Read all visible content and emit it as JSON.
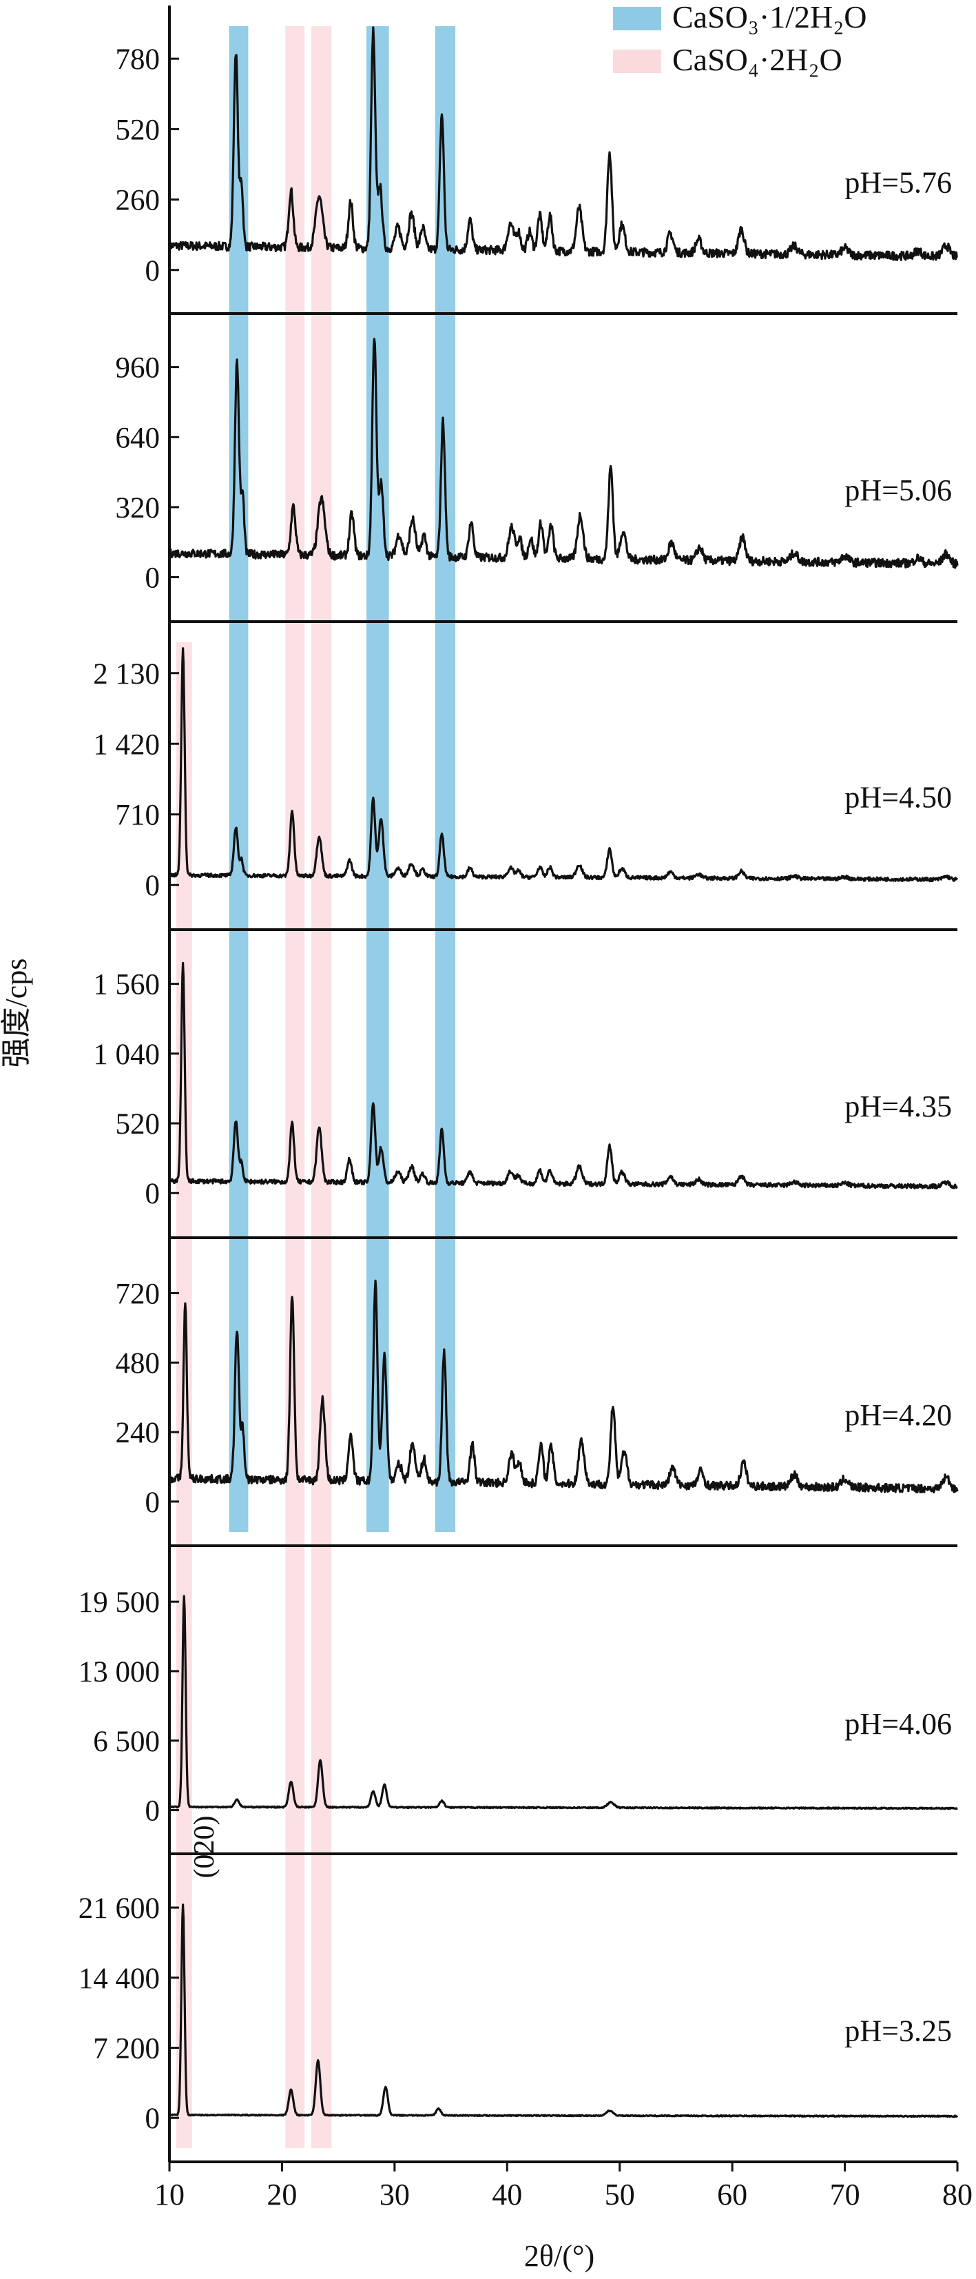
{
  "chart_data": {
    "type": "line",
    "title": "",
    "xlabel": "2θ/(°)",
    "ylabel": "强度/cps",
    "xlim": [
      10,
      80
    ],
    "xticks": [
      10,
      20,
      30,
      40,
      50,
      60,
      70,
      80
    ],
    "legend_position": "top-right",
    "legend": [
      {
        "name": "CaSO₃·1/2H₂O",
        "color": "#8ecae6"
      },
      {
        "name": "CaSO₄·2H₂O",
        "color": "#fadadd"
      }
    ],
    "phase_bands": {
      "CaSO3_half_hydrate": {
        "x_ranges": [
          [
            15.3,
            17.0
          ],
          [
            27.5,
            29.5
          ],
          [
            33.6,
            35.4
          ]
        ],
        "panels": [
          0,
          1,
          2,
          3,
          4
        ]
      },
      "CaSO4_dihydrate": {
        "x_ranges": [
          [
            20.3,
            22.0
          ],
          [
            22.6,
            24.4
          ]
        ],
        "panels": [
          0,
          1,
          4,
          5,
          6
        ]
      },
      "CaSO4_020": {
        "x_ranges": [
          [
            10.6,
            12.0
          ]
        ],
        "panels": [
          2,
          3,
          4,
          5,
          6
        ]
      }
    },
    "annotation": "(020)",
    "panels": [
      {
        "label": "pH=5.76",
        "yticks": [
          0,
          260,
          520,
          780
        ],
        "tick_labels": [
          "0",
          "260",
          "520",
          "780"
        ],
        "ylim": [
          -110,
          900
        ],
        "baseline": 90,
        "peaks": [
          [
            15.9,
            720,
            0.18
          ],
          [
            16.4,
            230,
            0.14
          ],
          [
            20.8,
            210,
            0.2
          ],
          [
            23.3,
            190,
            0.3
          ],
          [
            26.1,
            170,
            0.2
          ],
          [
            28.1,
            800,
            0.18
          ],
          [
            28.7,
            230,
            0.2
          ],
          [
            30.3,
            80,
            0.25
          ],
          [
            31.5,
            130,
            0.25
          ],
          [
            32.5,
            80,
            0.2
          ],
          [
            34.2,
            500,
            0.18
          ],
          [
            36.7,
            110,
            0.2
          ],
          [
            40.3,
            100,
            0.25
          ],
          [
            41.0,
            70,
            0.2
          ],
          [
            42.0,
            70,
            0.2
          ],
          [
            42.9,
            130,
            0.2
          ],
          [
            43.8,
            130,
            0.2
          ],
          [
            46.4,
            160,
            0.25
          ],
          [
            49.1,
            370,
            0.2
          ],
          [
            50.2,
            100,
            0.25
          ],
          [
            54.5,
            70,
            0.25
          ],
          [
            57.0,
            50,
            0.25
          ],
          [
            60.8,
            90,
            0.25
          ],
          [
            65.5,
            30,
            0.3
          ],
          [
            70.0,
            25,
            0.3
          ],
          [
            76.5,
            20,
            0.3
          ],
          [
            79.0,
            40,
            0.3
          ]
        ]
      },
      {
        "label": "pH=5.06",
        "yticks": [
          0,
          320,
          640,
          960
        ],
        "tick_labels": [
          "0",
          "320",
          "640",
          "960"
        ],
        "ylim": [
          -140,
          1110
        ],
        "baseline": 110,
        "peaks": [
          [
            16.0,
            880,
            0.18
          ],
          [
            16.5,
            270,
            0.14
          ],
          [
            21.0,
            220,
            0.2
          ],
          [
            23.5,
            260,
            0.3
          ],
          [
            26.2,
            190,
            0.2
          ],
          [
            28.2,
            1000,
            0.18
          ],
          [
            28.8,
            330,
            0.2
          ],
          [
            30.4,
            100,
            0.25
          ],
          [
            31.6,
            170,
            0.25
          ],
          [
            32.6,
            100,
            0.2
          ],
          [
            34.3,
            620,
            0.18
          ],
          [
            36.8,
            160,
            0.2
          ],
          [
            40.4,
            140,
            0.25
          ],
          [
            41.1,
            90,
            0.2
          ],
          [
            42.1,
            90,
            0.2
          ],
          [
            43.0,
            160,
            0.2
          ],
          [
            43.9,
            150,
            0.2
          ],
          [
            46.5,
            200,
            0.25
          ],
          [
            49.2,
            420,
            0.2
          ],
          [
            50.3,
            130,
            0.25
          ],
          [
            54.6,
            80,
            0.25
          ],
          [
            57.1,
            60,
            0.25
          ],
          [
            60.9,
            110,
            0.25
          ],
          [
            65.5,
            40,
            0.3
          ],
          [
            70.0,
            30,
            0.3
          ],
          [
            76.5,
            25,
            0.3
          ],
          [
            79.0,
            45,
            0.3
          ]
        ]
      },
      {
        "label": "pH=4.50",
        "yticks": [
          0,
          710,
          1420,
          2130
        ],
        "tick_labels": [
          "0",
          "710",
          "1 420",
          "2 130"
        ],
        "ylim": [
          -310,
          2440
        ],
        "baseline": 100,
        "peaks": [
          [
            11.2,
            2270,
            0.15
          ],
          [
            15.9,
            480,
            0.18
          ],
          [
            16.4,
            160,
            0.14
          ],
          [
            20.9,
            650,
            0.18
          ],
          [
            23.3,
            400,
            0.22
          ],
          [
            26.0,
            160,
            0.2
          ],
          [
            28.1,
            780,
            0.18
          ],
          [
            28.8,
            590,
            0.2
          ],
          [
            30.3,
            80,
            0.25
          ],
          [
            31.5,
            130,
            0.25
          ],
          [
            32.5,
            70,
            0.2
          ],
          [
            34.2,
            430,
            0.18
          ],
          [
            36.7,
            90,
            0.2
          ],
          [
            40.3,
            90,
            0.25
          ],
          [
            41.0,
            60,
            0.2
          ],
          [
            42.9,
            100,
            0.2
          ],
          [
            43.8,
            100,
            0.2
          ],
          [
            46.4,
            130,
            0.25
          ],
          [
            49.1,
            290,
            0.2
          ],
          [
            50.2,
            90,
            0.25
          ],
          [
            54.5,
            60,
            0.25
          ],
          [
            57.0,
            40,
            0.25
          ],
          [
            60.8,
            70,
            0.25
          ],
          [
            65.5,
            25,
            0.3
          ],
          [
            70.0,
            20,
            0.3
          ],
          [
            79.0,
            30,
            0.3
          ]
        ]
      },
      {
        "label": "pH=4.35",
        "yticks": [
          0,
          520,
          1040,
          1560
        ],
        "tick_labels": [
          "0",
          "520",
          "1 040",
          "1 560"
        ],
        "ylim": [
          -230,
          1810
        ],
        "baseline": 90,
        "peaks": [
          [
            11.2,
            1620,
            0.15
          ],
          [
            15.9,
            460,
            0.18
          ],
          [
            16.4,
            140,
            0.14
          ],
          [
            20.9,
            440,
            0.18
          ],
          [
            23.3,
            410,
            0.22
          ],
          [
            26.0,
            170,
            0.2
          ],
          [
            28.1,
            600,
            0.18
          ],
          [
            28.8,
            260,
            0.2
          ],
          [
            30.3,
            80,
            0.25
          ],
          [
            31.5,
            120,
            0.25
          ],
          [
            32.5,
            70,
            0.2
          ],
          [
            34.2,
            400,
            0.18
          ],
          [
            36.7,
            90,
            0.2
          ],
          [
            40.3,
            90,
            0.25
          ],
          [
            41.0,
            60,
            0.2
          ],
          [
            42.9,
            100,
            0.2
          ],
          [
            43.8,
            100,
            0.2
          ],
          [
            46.4,
            130,
            0.25
          ],
          [
            49.1,
            290,
            0.2
          ],
          [
            50.2,
            90,
            0.25
          ],
          [
            54.5,
            60,
            0.25
          ],
          [
            57.0,
            40,
            0.25
          ],
          [
            60.8,
            70,
            0.25
          ],
          [
            65.5,
            25,
            0.3
          ],
          [
            70.0,
            20,
            0.3
          ],
          [
            79.0,
            30,
            0.3
          ]
        ]
      },
      {
        "label": "pH=4.20",
        "yticks": [
          0,
          240,
          480,
          720
        ],
        "tick_labels": [
          "0",
          "240",
          "480",
          "720"
        ],
        "ylim": [
          -105,
          840
        ],
        "baseline": 80,
        "peaks": [
          [
            11.4,
            600,
            0.15
          ],
          [
            16.0,
            520,
            0.18
          ],
          [
            16.5,
            180,
            0.14
          ],
          [
            20.9,
            640,
            0.18
          ],
          [
            23.6,
            280,
            0.22
          ],
          [
            26.1,
            160,
            0.2
          ],
          [
            28.3,
            680,
            0.18
          ],
          [
            29.1,
            430,
            0.2
          ],
          [
            30.4,
            60,
            0.25
          ],
          [
            31.6,
            130,
            0.25
          ],
          [
            32.6,
            80,
            0.2
          ],
          [
            34.4,
            450,
            0.18
          ],
          [
            36.9,
            130,
            0.2
          ],
          [
            40.4,
            100,
            0.25
          ],
          [
            41.1,
            70,
            0.2
          ],
          [
            43.0,
            130,
            0.2
          ],
          [
            43.9,
            130,
            0.2
          ],
          [
            46.6,
            150,
            0.25
          ],
          [
            49.4,
            270,
            0.2
          ],
          [
            50.4,
            110,
            0.25
          ],
          [
            54.7,
            60,
            0.25
          ],
          [
            57.2,
            50,
            0.25
          ],
          [
            61.0,
            80,
            0.25
          ],
          [
            65.5,
            40,
            0.3
          ],
          [
            70.0,
            30,
            0.3
          ],
          [
            79.0,
            40,
            0.3
          ]
        ]
      },
      {
        "label": "pH=4.06",
        "yticks": [
          0,
          6500,
          13000,
          19500
        ],
        "tick_labels": [
          "0",
          "6 500",
          "13 000",
          "19 500"
        ],
        "ylim": [
          -2800,
          22800
        ],
        "baseline": 300,
        "peaks": [
          [
            11.3,
            19700,
            0.14
          ],
          [
            16.0,
            700,
            0.2
          ],
          [
            20.8,
            2400,
            0.2
          ],
          [
            23.4,
            4400,
            0.2
          ],
          [
            28.1,
            1500,
            0.2
          ],
          [
            29.1,
            2100,
            0.2
          ],
          [
            34.2,
            600,
            0.2
          ],
          [
            49.2,
            500,
            0.3
          ]
        ]
      },
      {
        "label": "pH=3.25",
        "yticks": [
          0,
          7200,
          14400,
          21600
        ],
        "tick_labels": [
          "0",
          "7 200",
          "14 400",
          "21 600"
        ],
        "ylim": [
          -3100,
          25000
        ],
        "baseline": 300,
        "peaks": [
          [
            11.2,
            21600,
            0.14
          ],
          [
            20.8,
            2600,
            0.2
          ],
          [
            23.2,
            5600,
            0.2
          ],
          [
            29.2,
            2900,
            0.2
          ],
          [
            33.9,
            700,
            0.2
          ],
          [
            49.1,
            500,
            0.3
          ]
        ]
      }
    ]
  }
}
